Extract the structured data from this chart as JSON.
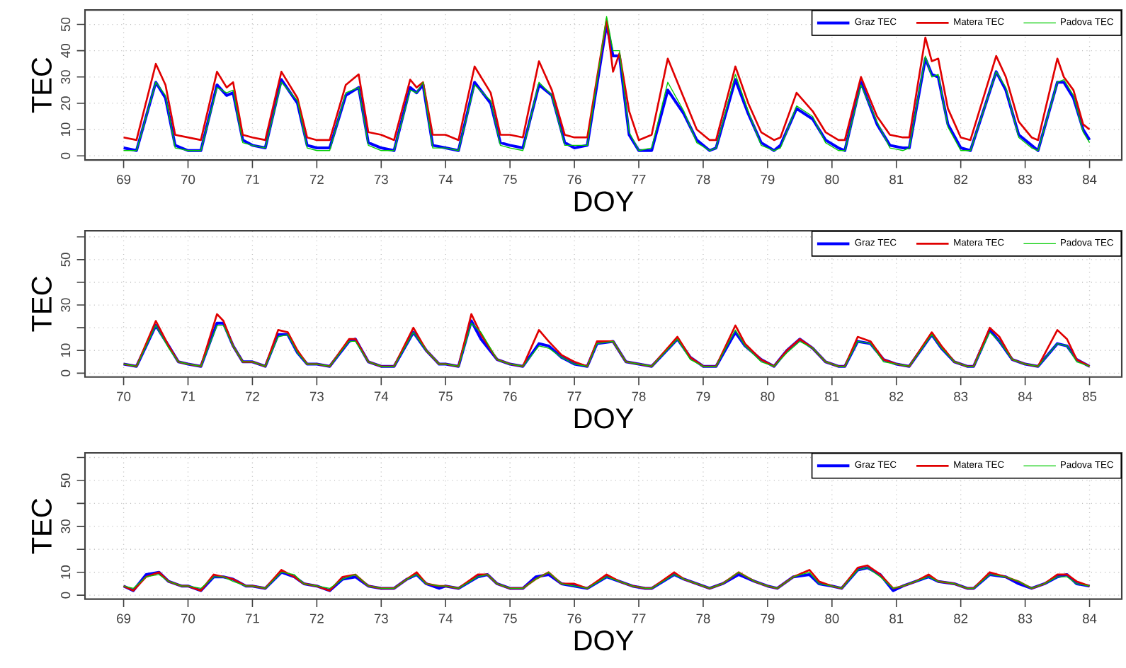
{
  "chart_data": [
    {
      "type": "line",
      "xlabel": "DOY",
      "ylabel": "TEC",
      "xlim": [
        68.4,
        84.5
      ],
      "ylim": [
        -1.6,
        55.5
      ],
      "xticks": [
        69,
        70,
        71,
        72,
        73,
        74,
        75,
        76,
        77,
        78,
        79,
        80,
        81,
        82,
        83,
        84
      ],
      "yticks": [
        0,
        10,
        20,
        30,
        40,
        50
      ],
      "grid": true,
      "legend": "top right",
      "line_style": "solid",
      "x": [
        69.0,
        69.2,
        69.5,
        69.65,
        69.8,
        70.0,
        70.2,
        70.45,
        70.6,
        70.7,
        70.85,
        71.0,
        71.2,
        71.45,
        71.7,
        71.85,
        72.0,
        72.2,
        72.45,
        72.65,
        72.8,
        73.0,
        73.2,
        73.45,
        73.55,
        73.65,
        73.8,
        74.0,
        74.2,
        74.45,
        74.7,
        74.85,
        75.0,
        75.2,
        75.45,
        75.65,
        75.85,
        76.0,
        76.2,
        76.5,
        76.6,
        76.7,
        76.85,
        77.0,
        77.2,
        77.45,
        77.7,
        77.9,
        78.1,
        78.2,
        78.5,
        78.7,
        78.9,
        79.1,
        79.2,
        79.45,
        79.7,
        79.9,
        80.1,
        80.2,
        80.45,
        80.7,
        80.9,
        81.1,
        81.2,
        81.45,
        81.55,
        81.65,
        81.8,
        82.0,
        82.15,
        82.55,
        82.7,
        82.9,
        83.1,
        83.2,
        83.5,
        83.6,
        83.75,
        83.9,
        84.0
      ],
      "series": [
        {
          "name": "Graz TEC",
          "color": "#0000ff",
          "values": [
            3,
            2,
            28,
            22,
            4,
            2,
            2,
            27,
            23,
            24,
            6,
            4,
            3,
            29,
            20,
            4,
            3,
            3,
            23,
            26,
            5,
            3,
            2,
            26,
            24,
            27,
            4,
            3,
            2,
            28,
            20,
            5,
            4,
            3,
            27,
            23,
            5,
            3,
            4,
            50,
            38,
            38,
            8,
            2,
            2,
            25,
            16,
            6,
            2,
            3,
            29,
            16,
            5,
            2,
            4,
            18,
            14,
            6,
            3,
            2,
            28,
            12,
            4,
            3,
            3,
            37,
            31,
            30,
            12,
            3,
            2,
            32,
            25,
            8,
            4,
            2,
            28,
            28,
            22,
            10,
            6
          ]
        },
        {
          "name": "Matera TEC",
          "color": "#e00000",
          "values": [
            7,
            6,
            35,
            27,
            8,
            7,
            6,
            32,
            26,
            28,
            8,
            7,
            6,
            32,
            22,
            7,
            6,
            6,
            27,
            31,
            9,
            8,
            6,
            29,
            26,
            28,
            8,
            8,
            6,
            34,
            24,
            8,
            8,
            7,
            36,
            25,
            8,
            7,
            7,
            52,
            32,
            39,
            17,
            6,
            8,
            37,
            22,
            10,
            6,
            6,
            34,
            20,
            9,
            6,
            7,
            24,
            17,
            9,
            6,
            6,
            30,
            15,
            8,
            7,
            7,
            45,
            36,
            37,
            18,
            7,
            6,
            38,
            30,
            13,
            7,
            6,
            37,
            30,
            25,
            12,
            10
          ]
        },
        {
          "name": "Padova TEC",
          "color": "#00cc00",
          "values": [
            2,
            2,
            28,
            23,
            3,
            2,
            2,
            26,
            24,
            25,
            5,
            4,
            3,
            28,
            21,
            3,
            2,
            2,
            24,
            26,
            4,
            2,
            2,
            25,
            24,
            28,
            3,
            3,
            2,
            27,
            21,
            4,
            3,
            2,
            28,
            23,
            4,
            4,
            4,
            53,
            40,
            40,
            9,
            2,
            3,
            28,
            17,
            5,
            2,
            3,
            31,
            17,
            4,
            2,
            3,
            19,
            15,
            5,
            2,
            2,
            27,
            13,
            3,
            2,
            3,
            38,
            30,
            31,
            11,
            2,
            2,
            32,
            26,
            7,
            3,
            2,
            28,
            29,
            23,
            9,
            5
          ]
        }
      ]
    },
    {
      "type": "line",
      "xlabel": "DOY",
      "ylabel": "TEC",
      "xlim": [
        69.4,
        85.5
      ],
      "ylim": [
        -1.7,
        62.7
      ],
      "xticks": [
        70,
        71,
        72,
        73,
        74,
        75,
        76,
        77,
        78,
        79,
        80,
        81,
        82,
        83,
        84,
        85
      ],
      "yticks": [
        0,
        10,
        {
          "value": 20,
          "label": null
        },
        30,
        {
          "value": 40,
          "label": null
        },
        50,
        {
          "value": 60,
          "label": null
        }
      ],
      "grid": true,
      "legend": "top right",
      "line_style": "solid",
      "x": [
        70.0,
        70.2,
        70.5,
        70.7,
        70.85,
        71.0,
        71.2,
        71.45,
        71.55,
        71.7,
        71.85,
        72.0,
        72.2,
        72.4,
        72.55,
        72.7,
        72.85,
        73.0,
        73.2,
        73.5,
        73.6,
        73.8,
        74.0,
        74.2,
        74.5,
        74.7,
        74.9,
        75.0,
        75.2,
        75.4,
        75.55,
        75.8,
        76.0,
        76.2,
        76.45,
        76.6,
        76.8,
        77.0,
        77.2,
        77.35,
        77.6,
        77.8,
        78.0,
        78.2,
        78.6,
        78.8,
        79.0,
        79.2,
        79.5,
        79.65,
        79.9,
        80.1,
        80.3,
        80.5,
        80.7,
        80.9,
        81.1,
        81.2,
        81.4,
        81.6,
        81.8,
        82.0,
        82.2,
        82.55,
        82.7,
        82.9,
        83.1,
        83.2,
        83.45,
        83.6,
        83.8,
        84.0,
        84.2,
        84.5,
        84.65,
        84.8,
        85.0
      ],
      "series": [
        {
          "name": "Graz TEC",
          "color": "#0000ff",
          "values": [
            4,
            3,
            21,
            12,
            5,
            4,
            3,
            22,
            22,
            12,
            5,
            5,
            3,
            17,
            17,
            9,
            4,
            4,
            3,
            14,
            15,
            5,
            3,
            3,
            18,
            10,
            4,
            4,
            3,
            23,
            15,
            6,
            4,
            3,
            13,
            12,
            7,
            4,
            3,
            13,
            14,
            5,
            4,
            3,
            15,
            7,
            3,
            3,
            18,
            12,
            6,
            3,
            10,
            15,
            11,
            5,
            3,
            3,
            14,
            13,
            6,
            4,
            3,
            17,
            11,
            5,
            3,
            3,
            19,
            14,
            6,
            4,
            3,
            13,
            12,
            6,
            3
          ]
        },
        {
          "name": "Matera TEC",
          "color": "#e00000",
          "values": [
            4,
            3,
            23,
            12,
            5,
            4,
            3,
            26,
            23,
            12,
            5,
            5,
            3,
            19,
            18,
            10,
            4,
            4,
            3,
            15,
            15,
            5,
            3,
            3,
            20,
            10,
            4,
            4,
            3,
            26,
            17,
            6,
            4,
            3,
            19,
            14,
            8,
            5,
            3,
            14,
            14,
            5,
            4,
            3,
            16,
            7,
            3,
            3,
            21,
            13,
            6,
            3,
            10,
            15,
            11,
            5,
            3,
            3,
            16,
            14,
            6,
            4,
            3,
            18,
            12,
            5,
            3,
            3,
            20,
            16,
            6,
            4,
            3,
            19,
            15,
            6,
            3
          ]
        },
        {
          "name": "Padova TEC",
          "color": "#00cc00",
          "values": [
            4,
            3,
            21,
            11,
            5,
            4,
            3,
            21,
            21,
            12,
            5,
            5,
            3,
            16,
            17,
            9,
            4,
            4,
            3,
            14,
            14,
            5,
            3,
            3,
            18,
            10,
            4,
            4,
            3,
            22,
            18,
            6,
            4,
            3,
            12,
            11,
            7,
            4,
            3,
            13,
            14,
            5,
            4,
            3,
            15,
            6,
            3,
            3,
            19,
            12,
            5,
            3,
            9,
            14,
            11,
            5,
            3,
            3,
            14,
            13,
            5,
            4,
            3,
            17,
            11,
            5,
            3,
            3,
            18,
            14,
            6,
            4,
            3,
            13,
            12,
            5,
            3
          ]
        }
      ]
    },
    {
      "type": "line",
      "xlabel": "DOY",
      "ylabel": "TEC",
      "xlim": [
        68.4,
        84.5
      ],
      "ylim": [
        -1.7,
        62
      ],
      "xticks": [
        69,
        70,
        71,
        72,
        73,
        74,
        75,
        76,
        77,
        78,
        79,
        80,
        81,
        82,
        83,
        84
      ],
      "yticks": [
        0,
        10,
        {
          "value": 20,
          "label": null
        },
        30,
        {
          "value": 40,
          "label": null
        },
        50,
        {
          "value": 60,
          "label": null
        }
      ],
      "grid": true,
      "legend": "top right",
      "line_style": "solid",
      "x": [
        69.0,
        69.15,
        69.35,
        69.55,
        69.7,
        69.9,
        70.0,
        70.2,
        70.4,
        70.55,
        70.7,
        70.9,
        71.0,
        71.2,
        71.45,
        71.65,
        71.8,
        72.0,
        72.2,
        72.4,
        72.6,
        72.8,
        73.0,
        73.2,
        73.4,
        73.55,
        73.7,
        73.9,
        74.0,
        74.2,
        74.5,
        74.65,
        74.8,
        75.0,
        75.2,
        75.4,
        75.6,
        75.8,
        76.0,
        76.2,
        76.5,
        76.7,
        76.9,
        77.1,
        77.2,
        77.55,
        77.7,
        77.9,
        78.1,
        78.3,
        78.55,
        78.8,
        79.0,
        79.15,
        79.4,
        79.65,
        79.8,
        80.0,
        80.15,
        80.4,
        80.55,
        80.75,
        80.95,
        81.1,
        81.3,
        81.5,
        81.65,
        81.9,
        82.1,
        82.2,
        82.45,
        82.7,
        82.9,
        83.1,
        83.3,
        83.5,
        83.65,
        83.8,
        84.0
      ],
      "series": [
        {
          "name": "Graz TEC",
          "color": "#0000ff",
          "values": [
            4,
            2,
            9,
            10,
            6,
            4,
            4,
            2,
            8,
            8,
            7,
            4,
            4,
            3,
            10,
            8,
            5,
            4,
            2,
            7,
            8,
            4,
            3,
            3,
            7,
            9,
            5,
            3,
            4,
            3,
            8,
            9,
            5,
            3,
            3,
            8,
            9,
            5,
            4,
            3,
            8,
            6,
            4,
            3,
            3,
            9,
            7,
            5,
            3,
            5,
            9,
            6,
            4,
            3,
            8,
            9,
            5,
            4,
            3,
            11,
            12,
            9,
            2,
            4,
            6,
            8,
            6,
            5,
            3,
            3,
            9,
            8,
            5,
            3,
            5,
            8,
            9,
            5,
            4
          ]
        },
        {
          "name": "Matera TEC",
          "color": "#e00000",
          "values": [
            4,
            2,
            8,
            10,
            6,
            4,
            4,
            2,
            9,
            8,
            7,
            4,
            4,
            3,
            11,
            8,
            5,
            4,
            2,
            8,
            9,
            4,
            3,
            3,
            7,
            10,
            5,
            4,
            4,
            3,
            9,
            9,
            5,
            3,
            3,
            7,
            10,
            5,
            5,
            3,
            9,
            6,
            4,
            3,
            3,
            10,
            7,
            5,
            3,
            5,
            10,
            6,
            4,
            3,
            8,
            11,
            6,
            4,
            3,
            12,
            13,
            9,
            3,
            4,
            6,
            9,
            6,
            5,
            3,
            3,
            10,
            8,
            6,
            3,
            5,
            9,
            9,
            6,
            4
          ]
        },
        {
          "name": "Padova TEC",
          "color": "#00cc00",
          "values": [
            4,
            3,
            8,
            9,
            6,
            4,
            4,
            3,
            8,
            8,
            6,
            4,
            4,
            3,
            10,
            9,
            5,
            4,
            3,
            7,
            9,
            4,
            3,
            3,
            7,
            9,
            5,
            4,
            4,
            3,
            8,
            9,
            5,
            3,
            3,
            7,
            10,
            5,
            4,
            3,
            8,
            6,
            4,
            3,
            3,
            9,
            7,
            5,
            3,
            5,
            10,
            6,
            4,
            3,
            8,
            10,
            5,
            4,
            3,
            11,
            12,
            8,
            3,
            4,
            6,
            8,
            6,
            5,
            3,
            3,
            9,
            8,
            6,
            3,
            5,
            8,
            8,
            5,
            4
          ]
        }
      ]
    }
  ]
}
